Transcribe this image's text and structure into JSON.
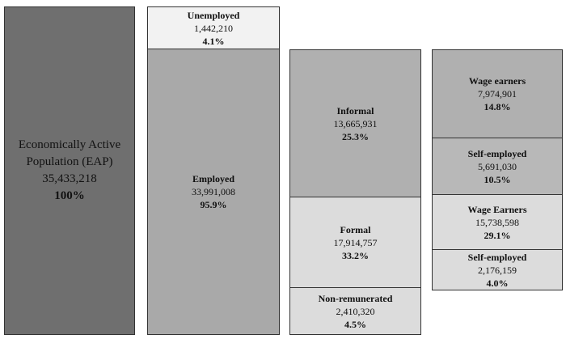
{
  "boxes": [
    {
      "label": "Economically Active Population (EAP)",
      "value": "35,433,218",
      "percent": "100%"
    },
    {
      "label": "Unemployed",
      "value": "1,442,210",
      "percent": "4.1%"
    },
    {
      "label": "Employed",
      "value": "33,991,008",
      "percent": "95.9%"
    },
    {
      "label": "Informal",
      "value": "13,665,931",
      "percent": "25.3%"
    },
    {
      "label": "Formal",
      "value": "17,914,757",
      "percent": "33.2%"
    },
    {
      "label": "Non-remunerated",
      "value": "2,410,320",
      "percent": "4.5%"
    },
    {
      "label": "Wage earners",
      "value": "7,974,901",
      "percent": "14.8%"
    },
    {
      "label": "Self-employed",
      "value": "5,691,030",
      "percent": "10.5%"
    },
    {
      "label": "Wage Earners",
      "value": "15,738,598",
      "percent": "29.1%"
    },
    {
      "label": "Self-employed",
      "value": "2,176,159",
      "percent": "4.0%"
    }
  ]
}
